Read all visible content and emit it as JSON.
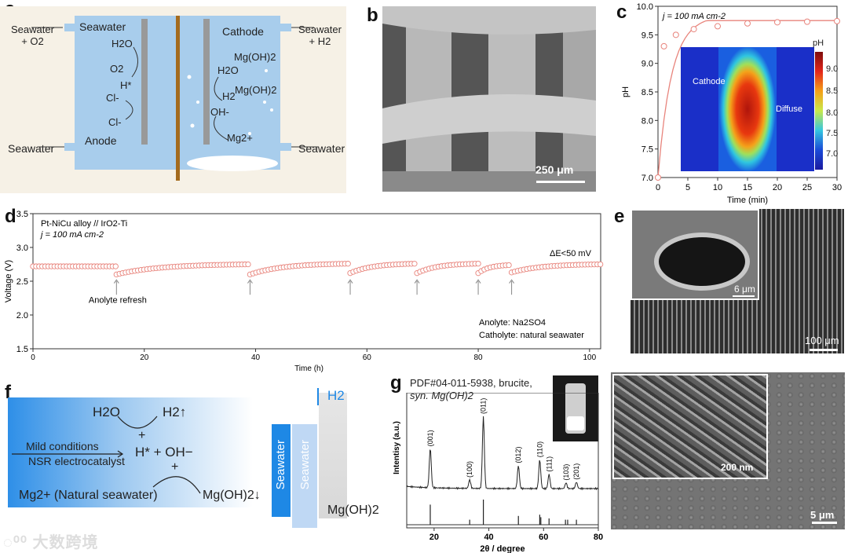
{
  "panel_letters": {
    "a": "a",
    "b": "b",
    "c": "c",
    "d": "d",
    "e": "e",
    "f": "f",
    "g": "g"
  },
  "panel_a": {
    "top_left": "Seawater",
    "top_left_out": "Seawater\n+ O2",
    "anode": "Anode",
    "cathode": "Cathode",
    "top_right_out": "Seawater\n+ H2",
    "bottom_left": "Seawater",
    "bottom_right": "Seawater",
    "left_species": [
      "H2O",
      "O2",
      "H*",
      "Cl-",
      "Cl-"
    ],
    "right_species": [
      "Mg(OH)2",
      "H2O",
      "H2",
      "Mg(OH)2",
      "OH-",
      "Mg2+"
    ]
  },
  "panel_b": {
    "scale": "250 μm"
  },
  "panel_c": {
    "annotation": "j = 100 mA cm-2",
    "inset_labels": [
      "Cathode",
      "Diffuse"
    ],
    "colorbar_title": "pH",
    "colorbar_ticks": [
      "9.0",
      "8.5",
      "8.0",
      "7.5",
      "7.0"
    ]
  },
  "panel_d": {
    "legend_line1": "Pt-NiCu alloy // IrO2-Ti",
    "legend_line2": "j = 100 mA cm-2",
    "delta": "ΔE<50 mV",
    "refresh": "Anolyte refresh",
    "anolyte": "Anolyte: Na2SO4",
    "catholyte": "Catholyte: natural seawater"
  },
  "panel_e": {
    "inset_scale": "6 μm",
    "scale": "100 μm"
  },
  "panel_f": {
    "h2o": "H2O",
    "h2": "H2↑",
    "plus1": "+",
    "mild": "Mild conditions",
    "nsr": "NSR electrocatalyst",
    "hoh": "H* + OH−",
    "plus2": "+",
    "mg": "Mg2+ (Natural seawater)",
    "mgoh": "Mg(OH)2↓",
    "seawater1": "Seawater",
    "seawater2": "Seawater",
    "h2_arrow": "H2",
    "mgoh2_label": "Mg(OH)2"
  },
  "panel_g": {
    "title_line1": "PDF#04-011-5938, brucite,",
    "title_line2": "syn. Mg(OH)2",
    "peaks": [
      "(001)",
      "(100)",
      "(011)",
      "(012)",
      "(110)",
      "(111)",
      "(103)",
      "(201)"
    ],
    "inset_scale": "200 nm",
    "scale": "5 μm"
  },
  "watermark": "大数跨境",
  "chart_data": [
    {
      "type": "line",
      "panel": "c",
      "x": [
        0,
        1,
        3,
        6,
        10,
        15,
        20,
        25,
        30
      ],
      "y": [
        7.0,
        9.3,
        9.5,
        9.6,
        9.65,
        9.7,
        9.72,
        9.73,
        9.74
      ],
      "xlabel": "Time (min)",
      "ylabel": "pH",
      "xlim": [
        0,
        30
      ],
      "ylim": [
        7.0,
        10.0
      ],
      "xticks": [
        "0",
        "5",
        "10",
        "15",
        "20",
        "25",
        "30"
      ],
      "yticks": [
        "7.0",
        "7.5",
        "8.0",
        "8.5",
        "9.0",
        "9.5",
        "10.0"
      ]
    },
    {
      "type": "line",
      "panel": "d",
      "segments": [
        {
          "x": [
            0,
            15
          ],
          "y": [
            2.72,
            2.72
          ]
        },
        {
          "x": [
            15,
            39
          ],
          "y": [
            2.6,
            2.75
          ]
        },
        {
          "x": [
            39,
            57
          ],
          "y": [
            2.6,
            2.76
          ]
        },
        {
          "x": [
            57,
            69
          ],
          "y": [
            2.62,
            2.76
          ]
        },
        {
          "x": [
            69,
            80
          ],
          "y": [
            2.62,
            2.76
          ]
        },
        {
          "x": [
            80,
            86
          ],
          "y": [
            2.62,
            2.74
          ]
        },
        {
          "x": [
            86,
            102
          ],
          "y": [
            2.63,
            2.75
          ]
        }
      ],
      "refresh_times": [
        15,
        39,
        57,
        69,
        80,
        86
      ],
      "xlabel": "Time (h)",
      "ylabel": "Voltage (V)",
      "xlim": [
        0,
        102
      ],
      "ylim": [
        1.5,
        3.5
      ],
      "xticks": [
        "0",
        "20",
        "40",
        "60",
        "80",
        "100"
      ],
      "yticks": [
        "1.5",
        "2.0",
        "2.5",
        "3.0",
        "3.5"
      ]
    },
    {
      "type": "line",
      "panel": "g",
      "peaks_2theta": [
        18.6,
        33.0,
        38.0,
        50.8,
        58.6,
        62.0,
        68.2,
        72.0
      ],
      "peak_heights": [
        0.55,
        0.12,
        1.0,
        0.32,
        0.4,
        0.2,
        0.08,
        0.09
      ],
      "ref_sticks": [
        18.6,
        33.0,
        38.0,
        50.8,
        58.6,
        59.0,
        62.0,
        68.0,
        68.8,
        72.0
      ],
      "ref_heights": [
        0.8,
        0.2,
        1.0,
        0.35,
        0.4,
        0.3,
        0.25,
        0.2,
        0.2,
        0.2
      ],
      "xlabel": "2θ / degree",
      "ylabel": "Intentisy (a.u.)",
      "xlim": [
        10,
        80
      ],
      "xticks": [
        "20",
        "40",
        "60",
        "80"
      ]
    }
  ]
}
